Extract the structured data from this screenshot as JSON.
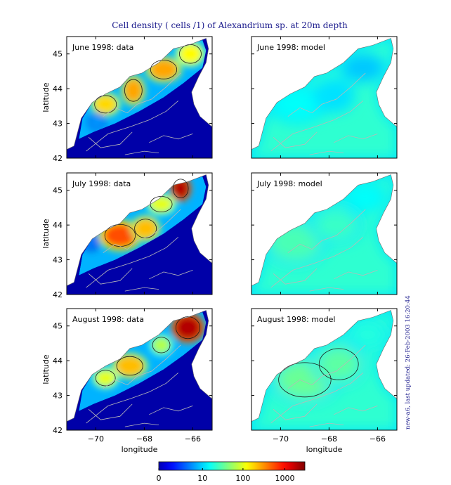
{
  "title": "Cell density ( cells /1) of Alexandrium sp. at 20m depth",
  "stamp": "new-a6, last updated: 26-Feb-2003 16:20:44",
  "colors": {
    "axis": "#000000",
    "contour": "#b9b9b9",
    "front": "#1a1a1a",
    "land": "#ffffff",
    "title": "#1a1a8c",
    "stamp": "#1a1a8c"
  },
  "chart_data": {
    "type": "heatmap",
    "title": "Cell density ( cells /1) of Alexandrium sp. at 20m depth",
    "xlabel": "longitude",
    "ylabel": "latitude",
    "xlim": [
      -71.2,
      -65.2
    ],
    "ylim": [
      42,
      45.5
    ],
    "xticks": [
      -70,
      -68,
      -66
    ],
    "xtick_labels": [
      "−70",
      "−68",
      "−66"
    ],
    "yticks": [
      42,
      43,
      44,
      45
    ],
    "ytick_labels": [
      "42",
      "43",
      "44",
      "45"
    ],
    "colorbar": {
      "scale": "log",
      "ticks": [
        0,
        10,
        100,
        1000
      ],
      "tick_labels": [
        "0",
        "10",
        "100",
        "1000"
      ],
      "range": [
        0,
        3000
      ]
    },
    "panels": [
      {
        "title": "June 1998: data",
        "kind": "data",
        "month": "June",
        "blobs": [
          {
            "lon": -69.6,
            "lat": 43.55,
            "value": 200,
            "rx": 0.5,
            "ry": 0.28
          },
          {
            "lon": -68.45,
            "lat": 43.95,
            "value": 300,
            "rx": 0.4,
            "ry": 0.35
          },
          {
            "lon": -67.2,
            "lat": 44.55,
            "value": 300,
            "rx": 0.6,
            "ry": 0.3
          },
          {
            "lon": -66.1,
            "lat": 45.0,
            "value": 150,
            "rx": 0.5,
            "ry": 0.3
          },
          {
            "lon": -69.95,
            "lat": 43.05,
            "value": 8,
            "rx": 0.3,
            "ry": 0.2
          }
        ]
      },
      {
        "title": "June 1998: model",
        "kind": "model",
        "month": "June",
        "blobs": [
          {
            "lon": -69.3,
            "lat": 43.55,
            "value": 20,
            "rx": 1.0,
            "ry": 0.45
          },
          {
            "lon": -67.8,
            "lat": 43.8,
            "value": 15,
            "rx": 0.7,
            "ry": 0.4
          },
          {
            "lon": -66.6,
            "lat": 44.6,
            "value": 12,
            "rx": 0.8,
            "ry": 0.35
          }
        ]
      },
      {
        "title": "July 1998: data",
        "kind": "data",
        "month": "July",
        "blobs": [
          {
            "lon": -69.0,
            "lat": 43.7,
            "value": 600,
            "rx": 0.7,
            "ry": 0.35
          },
          {
            "lon": -67.95,
            "lat": 43.9,
            "value": 250,
            "rx": 0.5,
            "ry": 0.3
          },
          {
            "lon": -66.5,
            "lat": 45.05,
            "value": 2000,
            "rx": 0.35,
            "ry": 0.3
          },
          {
            "lon": -67.3,
            "lat": 44.6,
            "value": 120,
            "rx": 0.5,
            "ry": 0.25
          },
          {
            "lon": -70.2,
            "lat": 43.5,
            "value": 6,
            "rx": 0.3,
            "ry": 0.2
          }
        ]
      },
      {
        "title": "July 1998: model",
        "kind": "model",
        "month": "July",
        "blobs": [
          {
            "lon": -69.4,
            "lat": 43.5,
            "value": 35,
            "rx": 1.1,
            "ry": 0.55
          },
          {
            "lon": -67.7,
            "lat": 44.0,
            "value": 30,
            "rx": 0.9,
            "ry": 0.45
          },
          {
            "lon": -66.5,
            "lat": 44.8,
            "value": 20,
            "rx": 0.7,
            "ry": 0.35
          }
        ]
      },
      {
        "title": "August 1998: data",
        "kind": "data",
        "month": "August",
        "blobs": [
          {
            "lon": -68.6,
            "lat": 43.85,
            "value": 250,
            "rx": 0.6,
            "ry": 0.3
          },
          {
            "lon": -69.6,
            "lat": 43.5,
            "value": 120,
            "rx": 0.45,
            "ry": 0.25
          },
          {
            "lon": -66.2,
            "lat": 44.95,
            "value": 2000,
            "rx": 0.55,
            "ry": 0.35
          },
          {
            "lon": -67.3,
            "lat": 44.45,
            "value": 80,
            "rx": 0.4,
            "ry": 0.25
          }
        ]
      },
      {
        "title": "August 1998: model",
        "kind": "model",
        "month": "August",
        "blobs": [
          {
            "lon": -69.0,
            "lat": 43.45,
            "value": 45,
            "rx": 1.2,
            "ry": 0.55
          },
          {
            "lon": -67.6,
            "lat": 43.9,
            "value": 40,
            "rx": 0.9,
            "ry": 0.5
          },
          {
            "lon": -66.4,
            "lat": 44.75,
            "value": 25,
            "rx": 0.7,
            "ry": 0.35
          }
        ]
      }
    ]
  }
}
